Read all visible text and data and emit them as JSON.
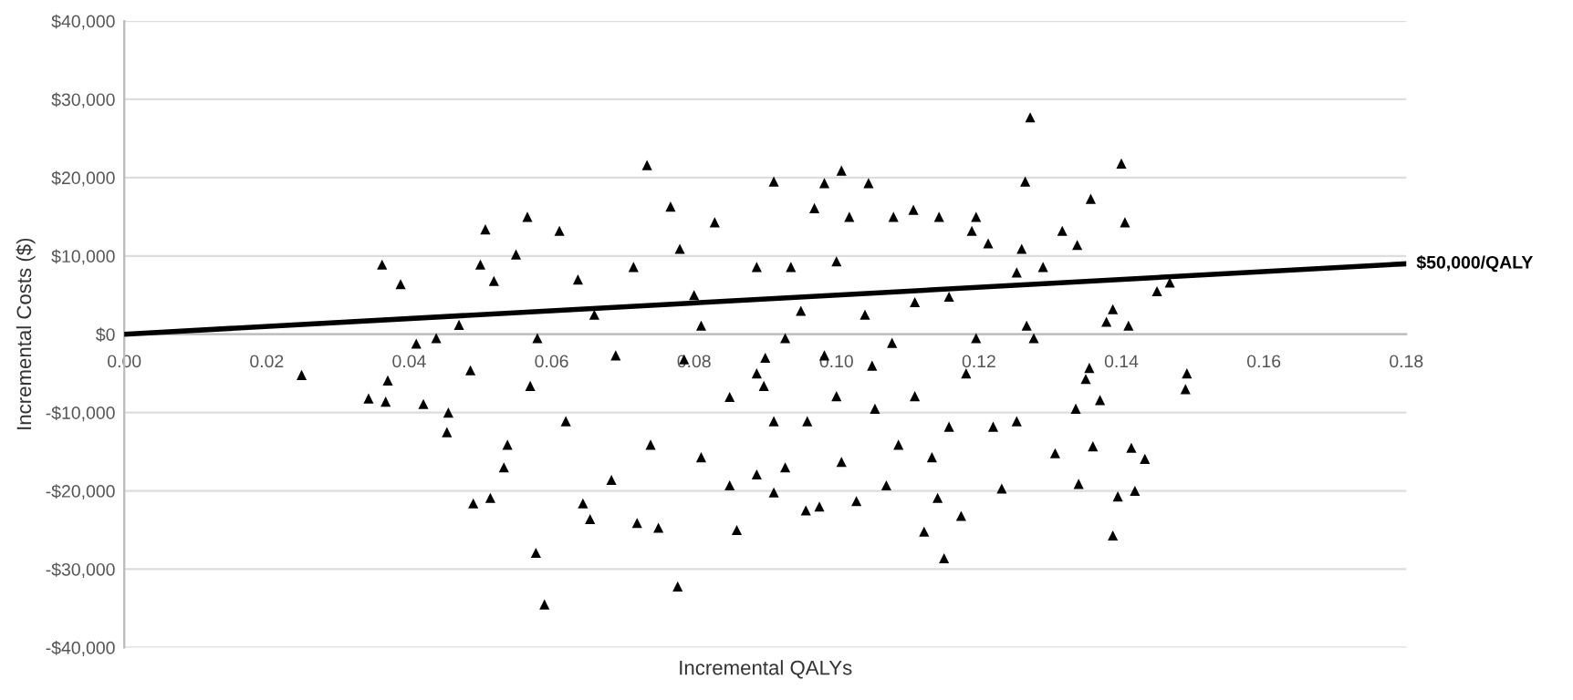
{
  "chart_data": {
    "type": "scatter",
    "xlabel": "Incremental QALYs",
    "ylabel": "Incremental Costs ($)",
    "xlim": [
      0,
      0.18
    ],
    "xticks": [
      {
        "value": 0,
        "label": "0.00"
      },
      {
        "value": 0.02,
        "label": "0.02"
      },
      {
        "value": 0.04,
        "label": "0.04"
      },
      {
        "value": 0.06,
        "label": "0.06"
      },
      {
        "value": 0.08,
        "label": "0.08"
      },
      {
        "value": 0.1,
        "label": "0.10"
      },
      {
        "value": 0.12,
        "label": "0.12"
      },
      {
        "value": 0.14,
        "label": "0.14"
      },
      {
        "value": 0.16,
        "label": "0.16"
      },
      {
        "value": 0.18,
        "label": "0.18"
      }
    ],
    "ylim": [
      -40000,
      40000
    ],
    "yticks": [
      {
        "value": -40000,
        "label": "-$40,000"
      },
      {
        "value": -30000,
        "label": "-$30,000"
      },
      {
        "value": -20000,
        "label": "-$20,000"
      },
      {
        "value": -10000,
        "label": "-$10,000"
      },
      {
        "value": 0,
        "label": "$0"
      },
      {
        "value": 10000,
        "label": "$10,000"
      },
      {
        "value": 20000,
        "label": "$20,000"
      },
      {
        "value": 30000,
        "label": "$30,000"
      },
      {
        "value": 40000,
        "label": "$40,000"
      }
    ],
    "grid": "y",
    "marker": "triangle",
    "series": [
      {
        "color": "#000000",
        "x": [
          0.0249,
          0.0362,
          0.0388,
          0.0343,
          0.0367,
          0.037,
          0.041,
          0.042,
          0.0438,
          0.0455,
          0.0453,
          0.047,
          0.0486,
          0.049,
          0.0507,
          0.05,
          0.0519,
          0.0566,
          0.0578,
          0.059,
          0.0611,
          0.0533,
          0.0514,
          0.0734,
          0.0767,
          0.0829,
          0.0777,
          0.086,
          0.075,
          0.072,
          0.0654,
          0.0644,
          0.0912,
          0.066,
          0.057,
          0.062,
          0.069,
          0.0786,
          0.0739,
          0.081,
          0.0684,
          0.085,
          0.058,
          0.0637,
          0.0715,
          0.078,
          0.0888,
          0.081,
          0.0888,
          0.0912,
          0.0888,
          0.055,
          0.0538,
          0.1272,
          0.1265,
          0.14,
          0.1405,
          0.1357,
          0.1007,
          0.1045,
          0.0983,
          0.1317,
          0.1338,
          0.145,
          0.1468,
          0.1388,
          0.141,
          0.1379,
          0.149,
          0.1492,
          0.1433,
          0.1414,
          0.1419,
          0.1395,
          0.1388,
          0.134,
          0.136,
          0.1307,
          0.137,
          0.1151,
          0.1123,
          0.1175,
          0.1142,
          0.1232,
          0.0957,
          0.0976,
          0.1028,
          0.107,
          0.0912,
          0.1196,
          0.1144,
          0.1108,
          0.108,
          0.1018,
          0.0969,
          0.1213,
          0.119,
          0.126,
          0.129,
          0.1253,
          0.1355,
          0.135,
          0.1336,
          0.1277,
          0.1267,
          0.1196,
          0.1182,
          0.111,
          0.1054,
          0.1,
          0.0959,
          0.1158,
          0.122,
          0.1253,
          0.1087,
          0.1007,
          0.0928,
          0.1134,
          0.104,
          0.111,
          0.1158,
          0.1,
          0.0936,
          0.0928,
          0.0983,
          0.1078,
          0.0898,
          0.09,
          0.085,
          0.095,
          0.08,
          0.105
        ],
        "values": [
          -5200,
          8900,
          6400,
          -8200,
          -8600,
          -5900,
          -1200,
          -8900,
          -500,
          -10000,
          -12500,
          1200,
          -4600,
          -21600,
          13400,
          8900,
          6800,
          15000,
          -27900,
          -34500,
          13200,
          -17000,
          -20900,
          21600,
          16300,
          14300,
          -32200,
          -25000,
          -24700,
          -24100,
          -23600,
          -21600,
          19500,
          2500,
          -6600,
          -11100,
          -2700,
          -3200,
          -14100,
          -15700,
          -18600,
          -19300,
          -500,
          7000,
          8600,
          10900,
          8600,
          1100,
          -5000,
          -11100,
          -17900,
          10200,
          -14100,
          27700,
          19500,
          21800,
          14300,
          17300,
          20900,
          19300,
          19300,
          13200,
          11400,
          5500,
          6600,
          3200,
          1100,
          1600,
          -7000,
          -5000,
          -15900,
          -14500,
          -20000,
          -20700,
          -25700,
          -19100,
          -14300,
          -15200,
          -8400,
          -28600,
          -25200,
          -23200,
          -20900,
          -19700,
          -22500,
          -22000,
          -21300,
          -19300,
          -20200,
          15000,
          15000,
          15900,
          15000,
          15000,
          16100,
          11600,
          13200,
          10900,
          8600,
          7900,
          -4300,
          -5700,
          -9500,
          -500,
          1100,
          -500,
          -5000,
          -7900,
          -9500,
          -7900,
          -11100,
          -11800,
          -11800,
          -11100,
          -14100,
          -16300,
          -17000,
          -15700,
          2500,
          4100,
          4800,
          9300,
          8600,
          -500,
          -2700,
          -1100,
          -6600,
          -3000,
          -8000,
          3000,
          5000,
          -4000
        ]
      },
      {
        "type": "line",
        "marker": "none",
        "name": "$50,000/QALY",
        "color": "#000000",
        "x": [
          0,
          0.18
        ],
        "values": [
          0,
          9000
        ]
      }
    ]
  }
}
